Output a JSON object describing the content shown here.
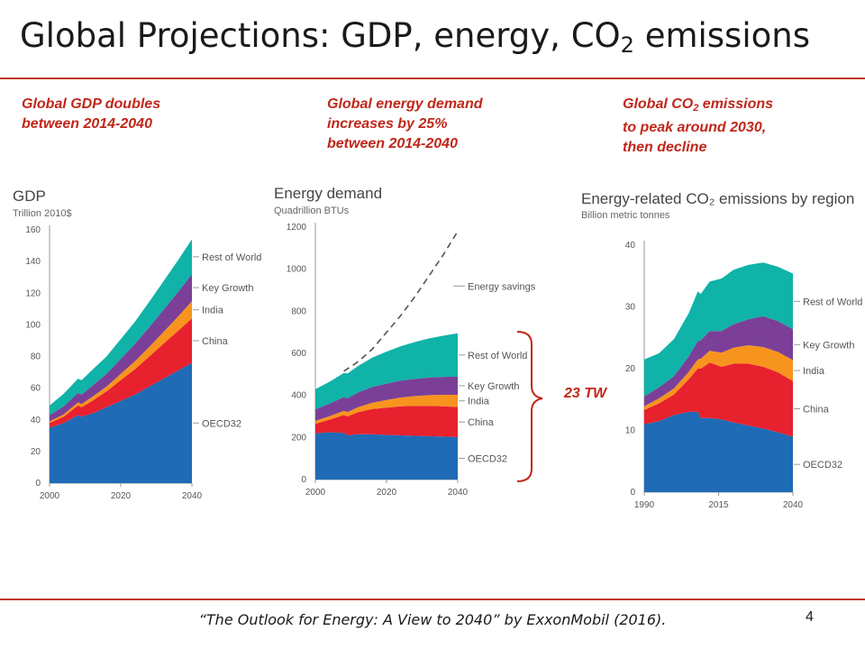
{
  "slide": {
    "title_main": "Global Projections: GDP, energy, CO",
    "title_sub": "2",
    "title_tail": " emissions",
    "page_number": "4",
    "footer": "“The Outlook for Energy: A View to 2040” by ExxonMobil (2016).",
    "annotation_tw": "23 TW"
  },
  "captions": [
    {
      "line1": "Global GDP doubles",
      "line2": "between 2014-2040",
      "line3": ""
    },
    {
      "line1": "Global energy demand",
      "line2": "increases by 25%",
      "line3": "between 2014-2040"
    },
    {
      "line1a": "Global CO",
      "line1sub": "2",
      "line1b": " emissions",
      "line2": "to peak around 2030,",
      "line3": "then decline"
    }
  ],
  "colors": {
    "OECD32": "#1f6bb5",
    "China": "#e8212e",
    "India": "#f7941d",
    "Key Growth": "#7b3f98",
    "Rest of World": "#0fb3a8",
    "accent": "#c0271a"
  },
  "chart_data": [
    {
      "type": "area",
      "stacked": true,
      "title": "GDP",
      "subtitle": "Trillion 2010$",
      "x": [
        2000,
        2004,
        2008,
        2009,
        2012,
        2016,
        2020,
        2024,
        2028,
        2032,
        2036,
        2040
      ],
      "xticks": [
        2000,
        2020,
        2040
      ],
      "yticks": [
        0,
        20,
        40,
        60,
        80,
        100,
        120,
        140,
        160
      ],
      "ylim": [
        0,
        160
      ],
      "series": [
        {
          "name": "OECD32",
          "values": [
            35,
            38,
            43,
            42,
            44,
            48,
            52,
            56,
            61,
            66,
            71,
            76
          ]
        },
        {
          "name": "China",
          "values": [
            3,
            4,
            6,
            6,
            8,
            10,
            13,
            16,
            19,
            22,
            25,
            28
          ]
        },
        {
          "name": "India",
          "values": [
            1,
            1.5,
            2,
            2,
            2.5,
            3,
            4,
            5,
            6,
            7.5,
            9,
            11
          ]
        },
        {
          "name": "Key Growth",
          "values": [
            4,
            5,
            6,
            6,
            7,
            8,
            9.5,
            11,
            12.5,
            14,
            15.5,
            17
          ]
        },
        {
          "name": "Rest of World",
          "values": [
            6,
            8,
            9,
            9,
            10,
            11,
            12.5,
            14,
            16,
            18,
            20,
            22
          ]
        }
      ]
    },
    {
      "type": "area",
      "stacked": true,
      "title": "Energy demand",
      "subtitle": "Quadrillion BTUs",
      "x": [
        2000,
        2004,
        2008,
        2009,
        2012,
        2016,
        2020,
        2024,
        2028,
        2032,
        2036,
        2040
      ],
      "xticks": [
        2000,
        2020,
        2040
      ],
      "yticks": [
        0,
        200,
        400,
        600,
        800,
        1000,
        1200
      ],
      "ylim": [
        0,
        1200
      ],
      "series": [
        {
          "name": "OECD32",
          "values": [
            220,
            225,
            222,
            210,
            215,
            215,
            212,
            210,
            208,
            206,
            204,
            202
          ]
        },
        {
          "name": "China",
          "values": [
            45,
            60,
            85,
            90,
            105,
            120,
            130,
            138,
            142,
            144,
            144,
            143
          ]
        },
        {
          "name": "India",
          "values": [
            14,
            16,
            20,
            21,
            24,
            30,
            36,
            42,
            47,
            51,
            55,
            58
          ]
        },
        {
          "name": "Key Growth",
          "values": [
            55,
            60,
            65,
            65,
            70,
            75,
            78,
            80,
            82,
            84,
            85,
            86
          ]
        },
        {
          "name": "Rest of World",
          "values": [
            96,
            104,
            115,
            118,
            126,
            140,
            152,
            164,
            175,
            186,
            196,
            206
          ]
        }
      ],
      "savings_line": {
        "name": "Energy savings",
        "x": [
          2008,
          2012,
          2016,
          2020,
          2024,
          2028,
          2032,
          2036,
          2040
        ],
        "values": [
          515,
          560,
          620,
          700,
          780,
          870,
          970,
          1070,
          1180
        ]
      }
    },
    {
      "type": "area",
      "stacked": true,
      "title": "Energy-related CO₂ emissions by region",
      "subtitle": "Billion metric tonnes",
      "x": [
        1990,
        1995,
        2000,
        2005,
        2008,
        2009,
        2012,
        2016,
        2020,
        2025,
        2030,
        2035,
        2040
      ],
      "xticks": [
        1990,
        2015,
        2040
      ],
      "yticks": [
        0,
        10,
        20,
        30,
        40
      ],
      "ylim": [
        0,
        40
      ],
      "series": [
        {
          "name": "OECD32",
          "values": [
            11,
            11.5,
            12.5,
            13,
            13,
            12,
            12,
            11.8,
            11.3,
            10.8,
            10.3,
            9.7,
            9
          ]
        },
        {
          "name": "China",
          "values": [
            2.3,
            2.9,
            3.3,
            5.3,
            7,
            8,
            9,
            8.5,
            9.5,
            10,
            10,
            9.7,
            9
          ]
        },
        {
          "name": "India",
          "values": [
            0.6,
            0.8,
            1,
            1.2,
            1.5,
            1.6,
            1.9,
            2.3,
            2.6,
            3,
            3.2,
            3.3,
            3.4
          ]
        },
        {
          "name": "Key Growth",
          "values": [
            1.6,
            1.8,
            2,
            2.5,
            3,
            3,
            3.2,
            3.5,
            3.8,
            4.2,
            5,
            5,
            5
          ]
        },
        {
          "name": "Rest of World",
          "values": [
            6,
            5.5,
            6,
            7,
            8,
            7.5,
            8,
            8.5,
            8.8,
            8.8,
            8.7,
            8.8,
            9
          ]
        }
      ]
    }
  ]
}
